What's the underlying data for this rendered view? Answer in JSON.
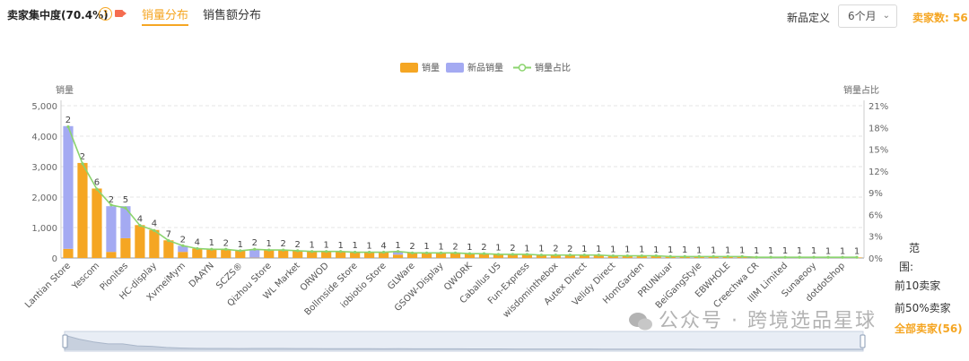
{
  "header": {
    "title": "卖家集中度(70.4%)",
    "tabs": [
      "销量分布",
      "销售额分布"
    ],
    "new_product_label": "新品定义",
    "period_value": "6个月",
    "seller_count": "卖家数: 56"
  },
  "range_panel": {
    "title_line1": "范",
    "title_line2": "围:",
    "opt_top10": "前10卖家",
    "opt_top50": "前50%卖家",
    "opt_all": "全部卖家(56)"
  },
  "watermark": "公众号 · 跨境选品星球",
  "colors": {
    "sales": "#f5a623",
    "new_sales": "#a4aaf2",
    "share": "#8bd46e",
    "accent": "#f5a623"
  },
  "chart_data": {
    "type": "bar",
    "legend": [
      "销量",
      "新品销量",
      "销量占比"
    ],
    "legend_position": "top-center",
    "ylabel_left": "销量",
    "ylabel_right": "销量占比",
    "y_left_ticks": [
      "0",
      "1,000",
      "2,000",
      "3,000",
      "4,000",
      "5,000"
    ],
    "y_right_ticks": [
      "0%",
      "3%",
      "6%",
      "9%",
      "12%",
      "15%",
      "18%",
      "21%"
    ],
    "ylim": [
      0,
      5000
    ],
    "y2lim": [
      0,
      21
    ],
    "grid": true,
    "sales": [
      300,
      3120,
      2280,
      200,
      650,
      1080,
      920,
      580,
      200,
      310,
      290,
      280,
      240,
      10,
      270,
      260,
      240,
      225,
      215,
      210,
      200,
      195,
      185,
      110,
      180,
      175,
      165,
      160,
      150,
      145,
      130,
      120,
      110,
      105,
      100,
      95,
      90,
      85,
      80,
      75,
      70,
      65,
      60,
      55,
      50,
      45,
      40,
      38,
      35,
      33,
      30,
      28,
      25,
      22,
      20,
      18
    ],
    "new_sales": [
      4030,
      0,
      0,
      1500,
      1050,
      0,
      0,
      0,
      200,
      0,
      0,
      0,
      0,
      280,
      0,
      0,
      0,
      0,
      0,
      0,
      0,
      0,
      0,
      100,
      0,
      0,
      0,
      0,
      0,
      0,
      0,
      0,
      0,
      0,
      0,
      0,
      0,
      0,
      0,
      0,
      0,
      0,
      0,
      0,
      0,
      0,
      0,
      0,
      0,
      0,
      0,
      0,
      0,
      0,
      0,
      0
    ],
    "share": [
      18.1,
      13.0,
      9.5,
      7.3,
      6.9,
      4.5,
      3.8,
      2.4,
      1.7,
      1.3,
      1.2,
      1.2,
      1.0,
      1.2,
      1.1,
      1.1,
      1.0,
      0.9,
      0.9,
      0.9,
      0.8,
      0.8,
      0.8,
      0.9,
      0.7,
      0.7,
      0.7,
      0.7,
      0.6,
      0.6,
      0.5,
      0.5,
      0.5,
      0.4,
      0.4,
      0.4,
      0.4,
      0.4,
      0.3,
      0.3,
      0.3,
      0.3,
      0.2,
      0.2,
      0.2,
      0.2,
      0.2,
      0.2,
      0.1,
      0.1,
      0.1,
      0.1,
      0.1,
      0.1,
      0.1,
      0.1
    ],
    "top_labels": [
      "2",
      "2",
      "6",
      "2",
      "5",
      "4",
      "4",
      "7",
      "2",
      "4",
      "1",
      "2",
      "1",
      "2",
      "1",
      "2",
      "2",
      "1",
      "1",
      "1",
      "1",
      "1",
      "4",
      "1",
      "2",
      "1",
      "1",
      "2",
      "1",
      "2",
      "1",
      "2",
      "1",
      "1",
      "2",
      "2",
      "1",
      "1",
      "1",
      "1",
      "1",
      "1",
      "1",
      "1",
      "1",
      "1",
      "1",
      "1",
      "1",
      "1",
      "1",
      "1",
      "1",
      "1",
      "1",
      "1"
    ],
    "x_tick_labels": [
      {
        "i": 0,
        "label": "Lantian Store"
      },
      {
        "i": 2,
        "label": "Yescom"
      },
      {
        "i": 4,
        "label": "Pionites"
      },
      {
        "i": 6,
        "label": "HC-display"
      },
      {
        "i": 8,
        "label": "XvmeiMym"
      },
      {
        "i": 10,
        "label": "DAAYN"
      },
      {
        "i": 12,
        "label": "SCZS®"
      },
      {
        "i": 14,
        "label": "Qizhou Store"
      },
      {
        "i": 16,
        "label": "WL Market"
      },
      {
        "i": 18,
        "label": "ORWOD"
      },
      {
        "i": 20,
        "label": "Bollmside Store"
      },
      {
        "i": 22,
        "label": "iobiotio Store"
      },
      {
        "i": 24,
        "label": "GLWare"
      },
      {
        "i": 26,
        "label": "GSOW-Display"
      },
      {
        "i": 28,
        "label": "QWORK"
      },
      {
        "i": 30,
        "label": "Caballus US"
      },
      {
        "i": 32,
        "label": "Fun-Express"
      },
      {
        "i": 34,
        "label": "wisdominthebox"
      },
      {
        "i": 36,
        "label": "Autex Direct"
      },
      {
        "i": 38,
        "label": "Velidy Direct"
      },
      {
        "i": 40,
        "label": "HomGarden"
      },
      {
        "i": 42,
        "label": "PRUNkuar"
      },
      {
        "i": 44,
        "label": "BeiGangStyle"
      },
      {
        "i": 46,
        "label": "EBWHOLE"
      },
      {
        "i": 48,
        "label": "Creechwa CR"
      },
      {
        "i": 50,
        "label": "IIIM Limited"
      },
      {
        "i": 52,
        "label": "Sunaeooy"
      },
      {
        "i": 54,
        "label": "dotdotshop"
      }
    ]
  }
}
